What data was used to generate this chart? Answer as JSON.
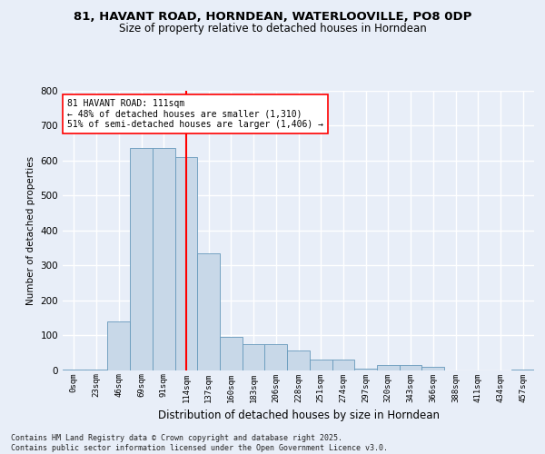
{
  "title_line1": "81, HAVANT ROAD, HORNDEAN, WATERLOOVILLE, PO8 0DP",
  "title_line2": "Size of property relative to detached houses in Horndean",
  "xlabel": "Distribution of detached houses by size in Horndean",
  "ylabel": "Number of detached properties",
  "bin_labels": [
    "0sqm",
    "23sqm",
    "46sqm",
    "69sqm",
    "91sqm",
    "114sqm",
    "137sqm",
    "160sqm",
    "183sqm",
    "206sqm",
    "228sqm",
    "251sqm",
    "274sqm",
    "297sqm",
    "320sqm",
    "343sqm",
    "366sqm",
    "388sqm",
    "411sqm",
    "434sqm",
    "457sqm"
  ],
  "bar_heights": [
    2,
    2,
    140,
    635,
    635,
    610,
    335,
    95,
    75,
    75,
    55,
    30,
    30,
    5,
    15,
    15,
    10,
    0,
    0,
    0,
    2
  ],
  "bar_color": "#c8d8e8",
  "bar_edge_color": "#6699bb",
  "vline_x": 5.0,
  "vline_color": "red",
  "annotation_text": "81 HAVANT ROAD: 111sqm\n← 48% of detached houses are smaller (1,310)\n51% of semi-detached houses are larger (1,406) →",
  "annotation_box_color": "white",
  "annotation_box_edge": "red",
  "ylim": [
    0,
    800
  ],
  "yticks": [
    0,
    100,
    200,
    300,
    400,
    500,
    600,
    700,
    800
  ],
  "footer_text": "Contains HM Land Registry data © Crown copyright and database right 2025.\nContains public sector information licensed under the Open Government Licence v3.0.",
  "bg_color": "#e8eef8",
  "plot_bg_color": "#e8eef8",
  "grid_color": "white"
}
